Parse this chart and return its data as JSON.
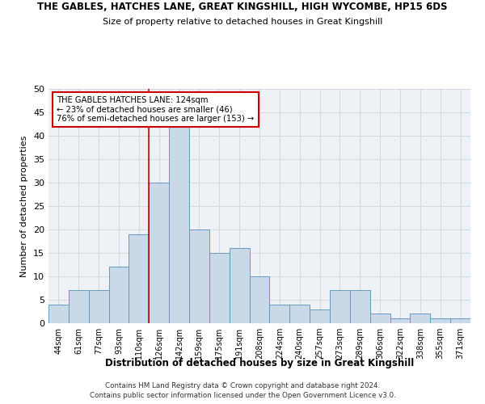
{
  "title": "THE GABLES, HATCHES LANE, GREAT KINGSHILL, HIGH WYCOMBE, HP15 6DS",
  "subtitle": "Size of property relative to detached houses in Great Kingshill",
  "xlabel": "Distribution of detached houses by size in Great Kingshill",
  "ylabel": "Number of detached properties",
  "bar_labels": [
    "44sqm",
    "61sqm",
    "77sqm",
    "93sqm",
    "110sqm",
    "126sqm",
    "142sqm",
    "159sqm",
    "175sqm",
    "191sqm",
    "208sqm",
    "224sqm",
    "240sqm",
    "257sqm",
    "273sqm",
    "289sqm",
    "306sqm",
    "322sqm",
    "338sqm",
    "355sqm",
    "371sqm"
  ],
  "bar_values": [
    4,
    7,
    7,
    12,
    19,
    30,
    42,
    20,
    15,
    16,
    10,
    4,
    4,
    3,
    7,
    7,
    2,
    1,
    2,
    1,
    1
  ],
  "ylim": [
    0,
    50
  ],
  "yticks": [
    0,
    5,
    10,
    15,
    20,
    25,
    30,
    35,
    40,
    45,
    50
  ],
  "bar_color": "#c9d9e8",
  "bar_edge_color": "#6699bb",
  "annotation_box_text": "THE GABLES HATCHES LANE: 124sqm\n← 23% of detached houses are smaller (46)\n76% of semi-detached houses are larger (153) →",
  "annotation_box_color": "#ffffff",
  "annotation_box_edge_color": "#cc0000",
  "vline_color": "#cc0000",
  "vline_x_index": 5,
  "background_color": "#eef2f7",
  "grid_color": "#d0d8e0",
  "footer_line1": "Contains HM Land Registry data © Crown copyright and database right 2024.",
  "footer_line2": "Contains public sector information licensed under the Open Government Licence v3.0."
}
